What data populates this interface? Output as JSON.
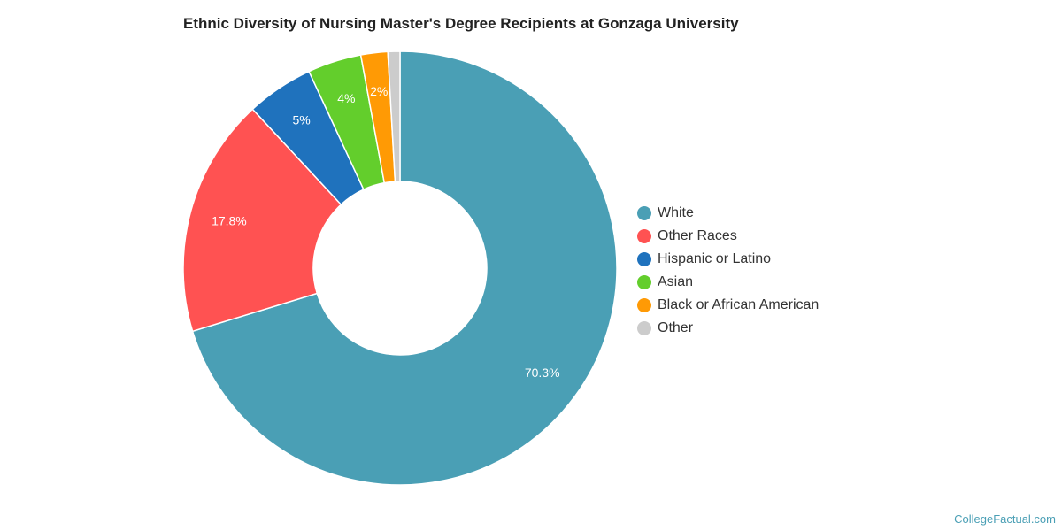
{
  "chart_data": {
    "type": "pie",
    "title": "Ethnic Diversity of Nursing Master's Degree Recipients at Gonzaga University",
    "legend_position": "right",
    "slices": [
      {
        "name": "White",
        "value": 70.3,
        "label": "70.3%",
        "color": "#4a9fb5"
      },
      {
        "name": "Other Races",
        "value": 17.8,
        "label": "17.8%",
        "color": "#ff5252"
      },
      {
        "name": "Hispanic or Latino",
        "value": 5,
        "label": "5%",
        "color": "#1f72bd"
      },
      {
        "name": "Asian",
        "value": 4,
        "label": "4%",
        "color": "#63ce2c"
      },
      {
        "name": "Black or African American",
        "value": 2,
        "label": "2%",
        "color": "#ff9a05"
      },
      {
        "name": "Other",
        "value": 0.9,
        "label": "",
        "color": "#cccccc"
      }
    ]
  },
  "footer": {
    "credit": "CollegeFactual.com"
  }
}
